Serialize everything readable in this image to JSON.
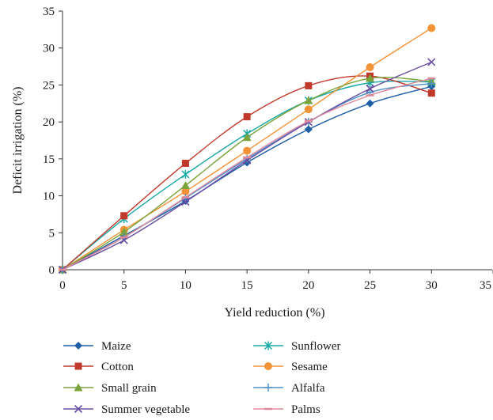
{
  "chart_data": {
    "type": "line",
    "title": "",
    "xlabel": "Yield reduction (%)",
    "ylabel": "Deficit irrigation (%)",
    "xlim": [
      0,
      35
    ],
    "ylim": [
      0,
      35
    ],
    "xticks": [
      0,
      5,
      10,
      15,
      20,
      25,
      30,
      35
    ],
    "yticks": [
      0,
      5,
      10,
      15,
      20,
      25,
      30,
      35
    ],
    "grid": false,
    "legend_position": "bottom",
    "x": [
      0,
      5,
      10,
      15,
      20,
      25,
      30
    ],
    "series": [
      {
        "name": "Maize",
        "color": "#1f5fa8",
        "marker": "diamond",
        "values": [
          0,
          4.6,
          9.3,
          14.5,
          19.0,
          22.5,
          24.8
        ]
      },
      {
        "name": "Sunflower",
        "color": "#1aa7a7",
        "marker": "asterisk",
        "values": [
          0,
          6.9,
          12.9,
          18.4,
          22.9,
          25.3,
          25.4
        ]
      },
      {
        "name": "Cotton",
        "color": "#c0392b",
        "marker": "square",
        "values": [
          0,
          7.3,
          14.4,
          20.7,
          24.9,
          26.2,
          23.9
        ]
      },
      {
        "name": "Sesame",
        "color": "#f39237",
        "marker": "circle",
        "values": [
          0,
          5.4,
          10.6,
          16.1,
          21.7,
          27.4,
          32.7
        ]
      },
      {
        "name": "Small grain",
        "color": "#7aa33b",
        "marker": "triangle",
        "values": [
          0,
          5.1,
          11.4,
          17.9,
          22.9,
          25.9,
          25.5
        ]
      },
      {
        "name": "Alfalfa",
        "color": "#4a90c8",
        "marker": "plus",
        "values": [
          0,
          4.4,
          9.7,
          15.0,
          20.0,
          24.0,
          25.2
        ]
      },
      {
        "name": "Summer vegetable",
        "color": "#6a4fa3",
        "marker": "x",
        "values": [
          0,
          4.0,
          9.2,
          14.8,
          20.0,
          24.5,
          28.1
        ]
      },
      {
        "name": "Palms",
        "color": "#e0899a",
        "marker": "dash",
        "values": [
          0,
          4.4,
          9.8,
          15.2,
          20.1,
          23.6,
          25.9
        ]
      }
    ]
  }
}
